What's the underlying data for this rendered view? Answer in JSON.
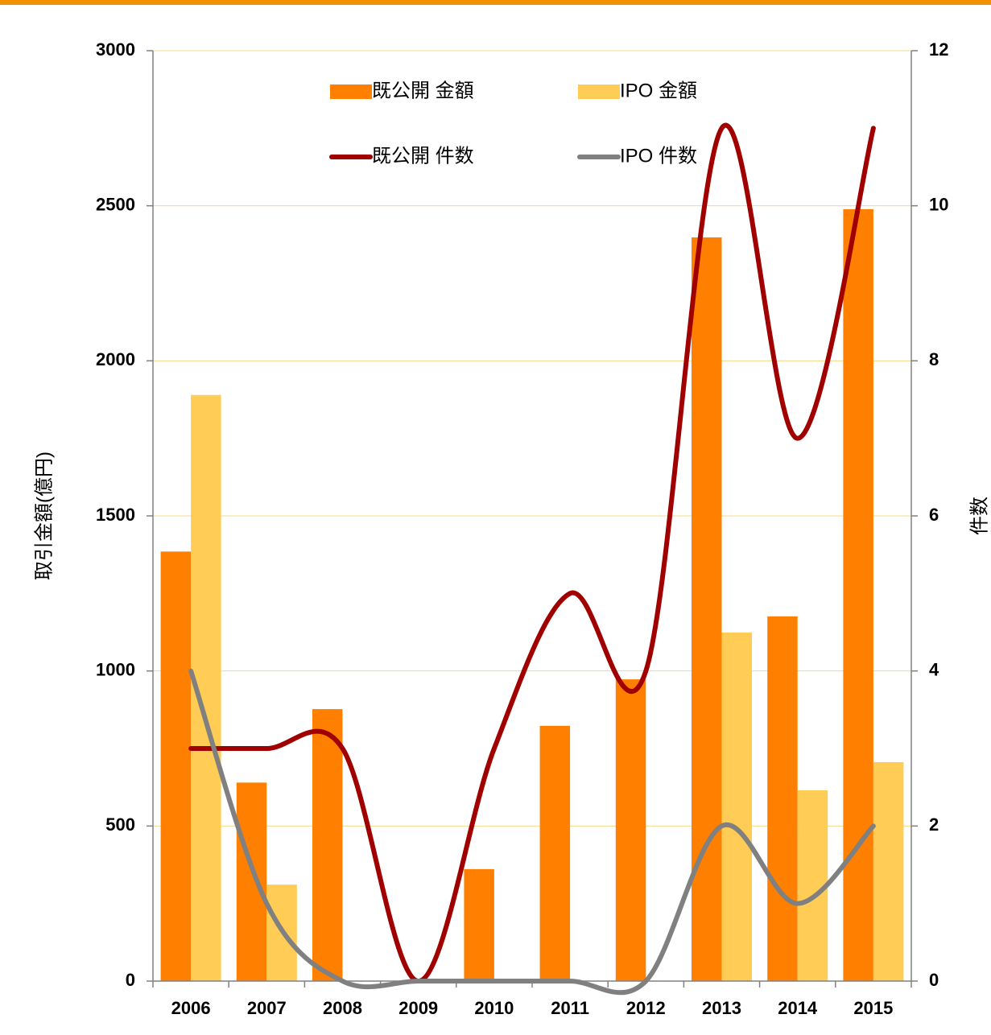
{
  "chart_data": {
    "type": "bar-line",
    "categories": [
      "2006",
      "2007",
      "2008",
      "2009",
      "2010",
      "2011",
      "2012",
      "2013",
      "2014",
      "2015"
    ],
    "series": [
      {
        "name": "既公開 金額",
        "type": "bar",
        "color": "#ff8000",
        "values": [
          1385,
          640,
          877,
          0,
          361,
          823,
          973,
          2398,
          1176,
          2489
        ]
      },
      {
        "name": "IPO 金額",
        "type": "bar",
        "color": "#ffcc55",
        "values": [
          1890,
          311,
          0,
          0,
          0,
          0,
          0,
          1124,
          615,
          706
        ]
      },
      {
        "name": "既公開 件数",
        "type": "line",
        "axis": "y2",
        "color": "#a00000",
        "values": [
          3,
          3,
          3,
          0,
          3,
          5,
          4,
          11,
          7,
          11
        ]
      },
      {
        "name": "IPO 件数",
        "type": "line",
        "axis": "y2",
        "color": "#808080",
        "values": [
          4,
          1,
          0,
          0,
          0,
          0,
          0,
          2,
          1,
          2
        ]
      }
    ],
    "ylabel": "取引金額(億円)",
    "y2label": "件数",
    "ylim": [
      0,
      3000
    ],
    "yticks": [
      0,
      500,
      1000,
      1500,
      2000,
      2500,
      3000
    ],
    "y2lim": [
      0,
      12
    ],
    "y2ticks": [
      0,
      2,
      4,
      6,
      8,
      10,
      12
    ],
    "grid": true
  }
}
